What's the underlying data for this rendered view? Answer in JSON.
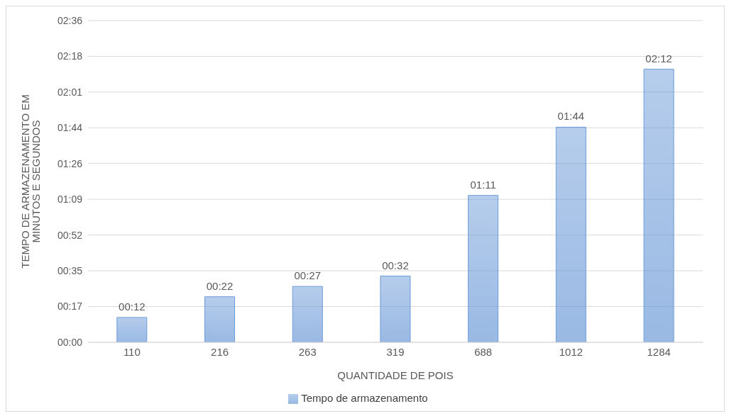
{
  "chart_data": {
    "type": "bar",
    "xlabel": "QUANTIDADE DE POIS",
    "ylabel": "TEMPO DE ARMAZENAMENTO EM MINUTOS E SEGUNDOS",
    "categories": [
      "110",
      "216",
      "263",
      "319",
      "688",
      "1012",
      "1284"
    ],
    "series": [
      {
        "name": "Tempo de armazenamento",
        "color": "#6d9bd8",
        "values": [
          12,
          22,
          27,
          32,
          71,
          104,
          132
        ],
        "value_labels": [
          "00:12",
          "00:22",
          "00:27",
          "00:32",
          "01:11",
          "01:44",
          "02:12"
        ]
      }
    ],
    "ylim": [
      0,
      155.52
    ],
    "yticks": [
      {
        "value": 0,
        "label": "00:00"
      },
      {
        "value": 17.28,
        "label": "00:17"
      },
      {
        "value": 34.56,
        "label": "00:35"
      },
      {
        "value": 51.84,
        "label": "00:52"
      },
      {
        "value": 69.12,
        "label": "01:09"
      },
      {
        "value": 86.4,
        "label": "01:26"
      },
      {
        "value": 103.68,
        "label": "01:44"
      },
      {
        "value": 120.96,
        "label": "02:01"
      },
      {
        "value": 138.24,
        "label": "02:18"
      },
      {
        "value": 155.52,
        "label": "02:36"
      }
    ],
    "grid": "y",
    "legend": "bottom"
  }
}
